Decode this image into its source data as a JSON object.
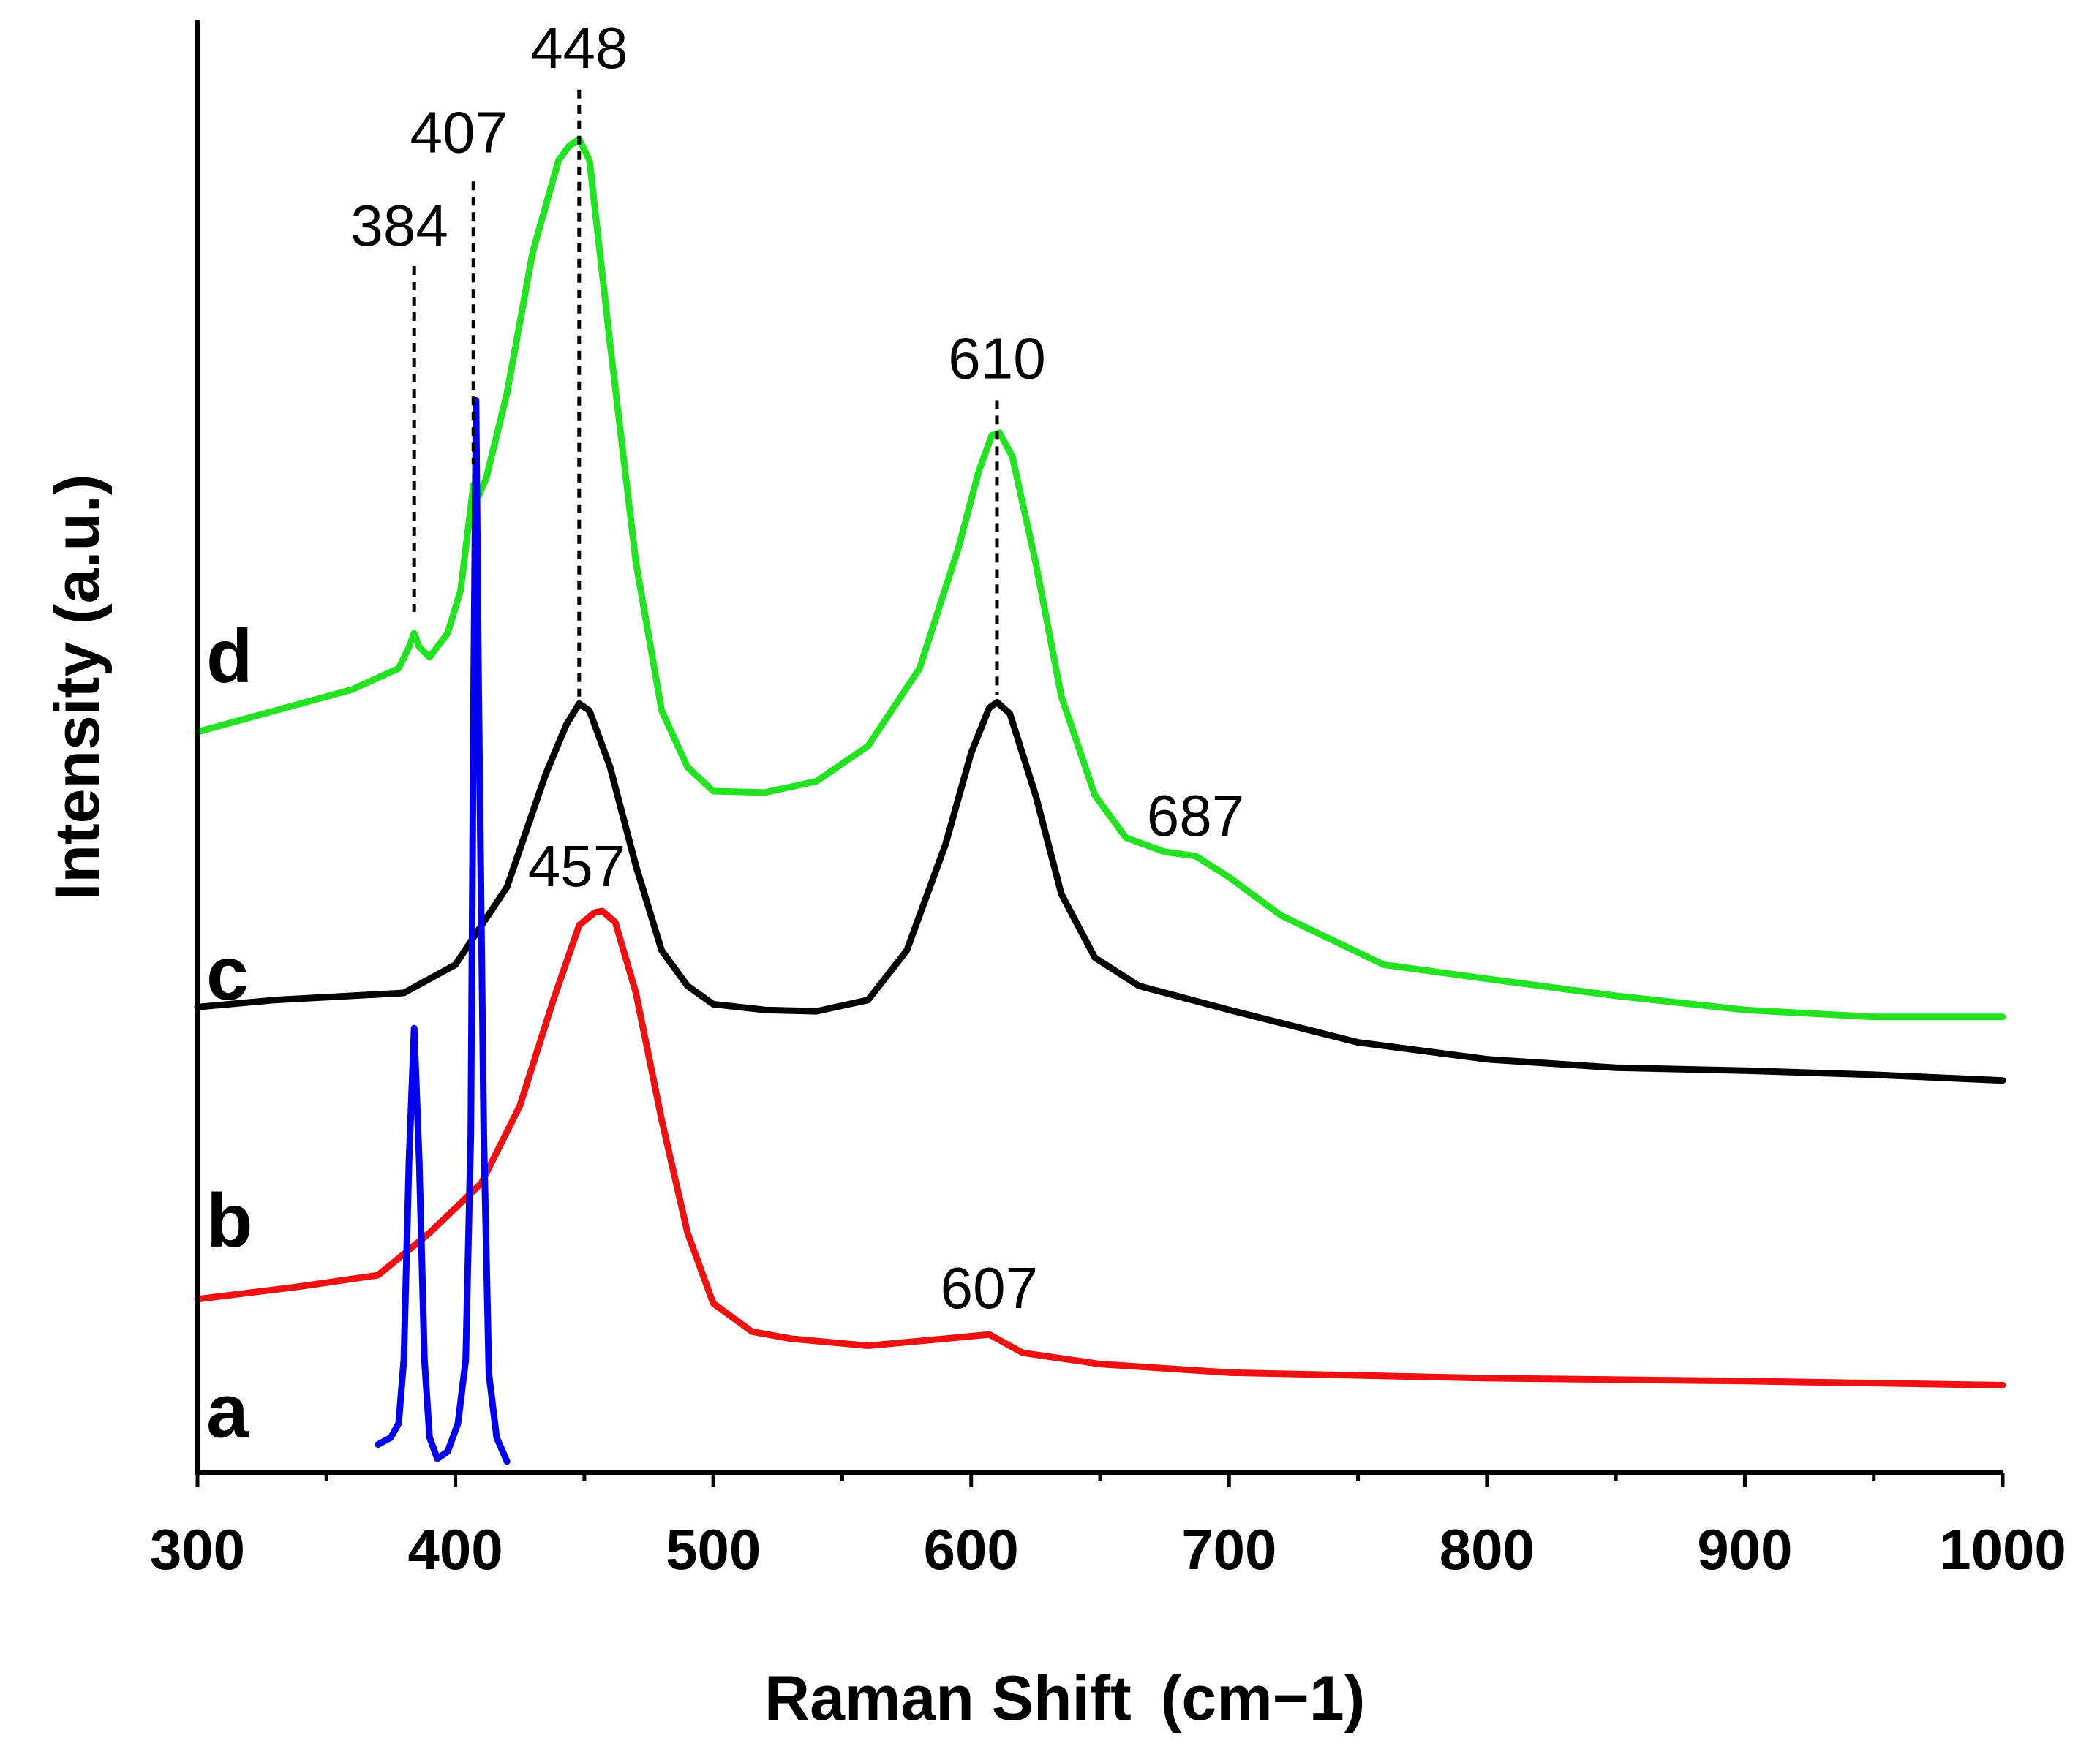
{
  "chart_data": {
    "type": "line",
    "title": "",
    "xlabel": "Raman Shift",
    "xlabel_unit": "(cm−1)",
    "ylabel": "Intensity (a.u.)",
    "xlim": [
      300,
      1000
    ],
    "ylim": [
      0,
      10
    ],
    "x_ticks": [
      300,
      400,
      500,
      600,
      700,
      800,
      900,
      1000
    ],
    "x_tick_labels": [
      "300",
      "400",
      "500",
      "600",
      "700",
      "800",
      "900",
      "1000"
    ],
    "y_ticks_shown": false,
    "grid": false,
    "legend": "none",
    "series": [
      {
        "name": "a",
        "color": "#0000ee",
        "points": [
          [
            370,
            0.8
          ],
          [
            375,
            0.85
          ],
          [
            378,
            0.95
          ],
          [
            380,
            1.4
          ],
          [
            382,
            2.8
          ],
          [
            384,
            3.75
          ],
          [
            386,
            2.8
          ],
          [
            388,
            1.4
          ],
          [
            390,
            0.85
          ],
          [
            393,
            0.7
          ],
          [
            397,
            0.75
          ],
          [
            401,
            0.95
          ],
          [
            404,
            1.4
          ],
          [
            406,
            3.0
          ],
          [
            407,
            6.0
          ],
          [
            408,
            8.2
          ],
          [
            409,
            6.2
          ],
          [
            411,
            3.0
          ],
          [
            413,
            1.3
          ],
          [
            416,
            0.85
          ],
          [
            420,
            0.68
          ]
        ]
      },
      {
        "name": "b",
        "color": "#ee1111",
        "points": [
          [
            300,
            1.83
          ],
          [
            340,
            1.92
          ],
          [
            370,
            2.0
          ],
          [
            390,
            2.3
          ],
          [
            410,
            2.65
          ],
          [
            425,
            3.2
          ],
          [
            438,
            3.95
          ],
          [
            448,
            4.48
          ],
          [
            454,
            4.57
          ],
          [
            457,
            4.58
          ],
          [
            462,
            4.5
          ],
          [
            470,
            4.0
          ],
          [
            480,
            3.1
          ],
          [
            490,
            2.3
          ],
          [
            500,
            1.8
          ],
          [
            515,
            1.6
          ],
          [
            530,
            1.55
          ],
          [
            560,
            1.5
          ],
          [
            590,
            1.55
          ],
          [
            607,
            1.58
          ],
          [
            620,
            1.45
          ],
          [
            650,
            1.37
          ],
          [
            700,
            1.31
          ],
          [
            800,
            1.27
          ],
          [
            900,
            1.25
          ],
          [
            1000,
            1.22
          ]
        ]
      },
      {
        "name": "c",
        "color": "#000000",
        "points": [
          [
            300,
            3.9
          ],
          [
            330,
            3.95
          ],
          [
            360,
            3.98
          ],
          [
            380,
            4.0
          ],
          [
            400,
            4.2
          ],
          [
            420,
            4.75
          ],
          [
            435,
            5.55
          ],
          [
            443,
            5.9
          ],
          [
            448,
            6.05
          ],
          [
            452,
            6.0
          ],
          [
            460,
            5.6
          ],
          [
            470,
            4.9
          ],
          [
            480,
            4.3
          ],
          [
            490,
            4.05
          ],
          [
            500,
            3.92
          ],
          [
            520,
            3.88
          ],
          [
            540,
            3.87
          ],
          [
            560,
            3.95
          ],
          [
            575,
            4.3
          ],
          [
            590,
            5.05
          ],
          [
            600,
            5.7
          ],
          [
            607,
            6.02
          ],
          [
            610,
            6.06
          ],
          [
            615,
            5.98
          ],
          [
            625,
            5.4
          ],
          [
            635,
            4.7
          ],
          [
            648,
            4.25
          ],
          [
            665,
            4.05
          ],
          [
            700,
            3.88
          ],
          [
            750,
            3.65
          ],
          [
            800,
            3.53
          ],
          [
            850,
            3.47
          ],
          [
            900,
            3.45
          ],
          [
            950,
            3.42
          ],
          [
            1000,
            3.38
          ]
        ]
      },
      {
        "name": "d",
        "color": "#22e222",
        "points": [
          [
            300,
            5.85
          ],
          [
            330,
            6.0
          ],
          [
            360,
            6.15
          ],
          [
            378,
            6.3
          ],
          [
            382,
            6.45
          ],
          [
            384,
            6.55
          ],
          [
            386,
            6.45
          ],
          [
            390,
            6.38
          ],
          [
            397,
            6.55
          ],
          [
            402,
            6.85
          ],
          [
            405,
            7.3
          ],
          [
            407,
            7.6
          ],
          [
            409,
            7.52
          ],
          [
            412,
            7.65
          ],
          [
            420,
            8.25
          ],
          [
            430,
            9.25
          ],
          [
            440,
            9.9
          ],
          [
            444,
            10.0
          ],
          [
            448,
            10.05
          ],
          [
            452,
            9.9
          ],
          [
            460,
            8.6
          ],
          [
            470,
            7.05
          ],
          [
            480,
            6.0
          ],
          [
            490,
            5.6
          ],
          [
            500,
            5.43
          ],
          [
            520,
            5.42
          ],
          [
            540,
            5.5
          ],
          [
            560,
            5.75
          ],
          [
            580,
            6.3
          ],
          [
            595,
            7.15
          ],
          [
            603,
            7.7
          ],
          [
            608,
            7.95
          ],
          [
            611,
            7.97
          ],
          [
            616,
            7.8
          ],
          [
            625,
            7.05
          ],
          [
            635,
            6.1
          ],
          [
            648,
            5.4
          ],
          [
            660,
            5.1
          ],
          [
            675,
            5.0
          ],
          [
            687,
            4.97
          ],
          [
            700,
            4.82
          ],
          [
            720,
            4.55
          ],
          [
            760,
            4.2
          ],
          [
            800,
            4.1
          ],
          [
            850,
            3.98
          ],
          [
            900,
            3.88
          ],
          [
            950,
            3.83
          ],
          [
            1000,
            3.83
          ]
        ]
      }
    ],
    "curve_labels": [
      {
        "text": "a",
        "series": "a"
      },
      {
        "text": "b",
        "series": "b"
      },
      {
        "text": "c",
        "series": "c"
      },
      {
        "text": "d",
        "series": "d"
      }
    ],
    "annotations": [
      {
        "text": "384",
        "x": 384,
        "series": "d",
        "dashed_marker": true
      },
      {
        "text": "407",
        "x": 407,
        "series": "d",
        "dashed_marker": true
      },
      {
        "text": "448",
        "x": 448,
        "series": "d",
        "dashed_marker": true
      },
      {
        "text": "610",
        "x": 610,
        "series": "d",
        "dashed_marker": true
      },
      {
        "text": "687",
        "x": 687,
        "series": "d",
        "dashed_marker": false
      },
      {
        "text": "457",
        "x": 457,
        "series": "b",
        "dashed_marker": false
      },
      {
        "text": "607",
        "x": 607,
        "series": "b",
        "dashed_marker": false
      }
    ]
  }
}
